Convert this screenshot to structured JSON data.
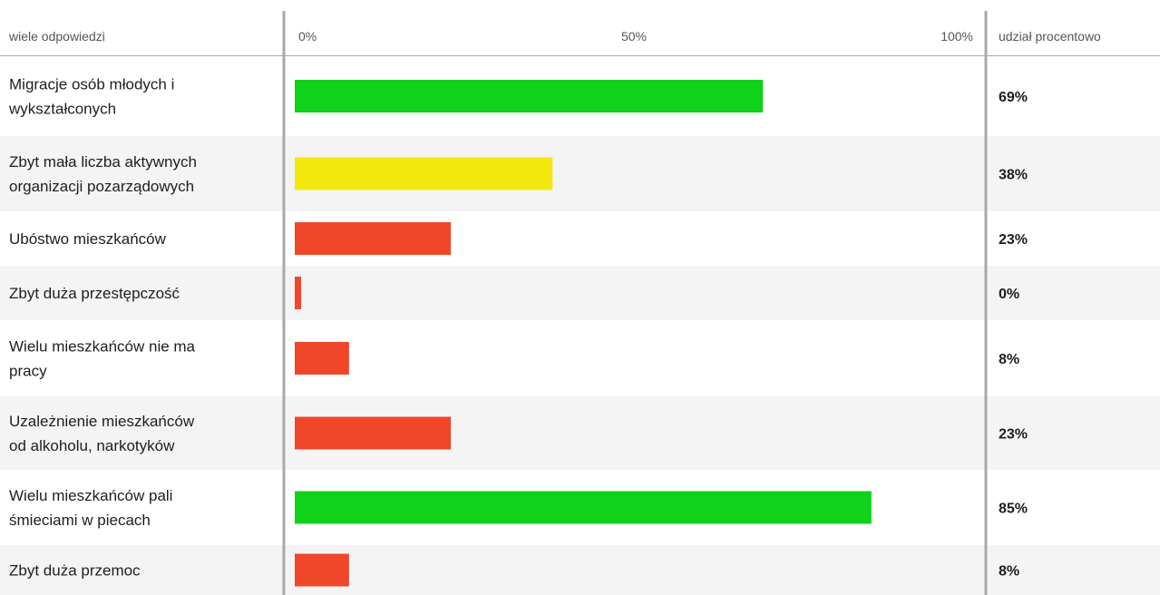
{
  "chart_data": {
    "type": "bar",
    "orientation": "horizontal",
    "header": {
      "question_type": "wiele odpowiedzi",
      "tick_labels": [
        "0%",
        "50%",
        "100%"
      ],
      "share_header": "udział procentowo"
    },
    "xlim": [
      0,
      100
    ],
    "grid": false,
    "categories": [
      [
        "Migracje osób młodych i",
        "wykształconych"
      ],
      [
        "Zbyt mała liczba aktywnych",
        "organizacji pozarządowych"
      ],
      [
        "Ubóstwo mieszkańców"
      ],
      [
        "Zbyt duża przestępczość"
      ],
      [
        "Wielu mieszkańców nie ma",
        "pracy"
      ],
      [
        "Uzależnienie mieszkańców",
        "od alkoholu, narkotyków"
      ],
      [
        "Wielu mieszkańców pali",
        "śmieciami w piecach"
      ],
      [
        "Zbyt duża przemoc"
      ]
    ],
    "values": [
      69,
      38,
      23,
      0,
      8,
      23,
      85,
      8
    ],
    "value_labels": [
      "69%",
      "38%",
      "23%",
      "0%",
      "8%",
      "23%",
      "85%",
      "8%"
    ],
    "bar_colors": [
      "#11d21a",
      "#f2e80f",
      "#f0462a",
      "#f0462a",
      "#f0462a",
      "#f0462a",
      "#11d21a",
      "#f0462a"
    ],
    "colors": {
      "row_alt": "#f4f4f4",
      "divider": "#a8a8a8",
      "label_text": "#1e1e1e",
      "header_text": "#555555"
    }
  }
}
